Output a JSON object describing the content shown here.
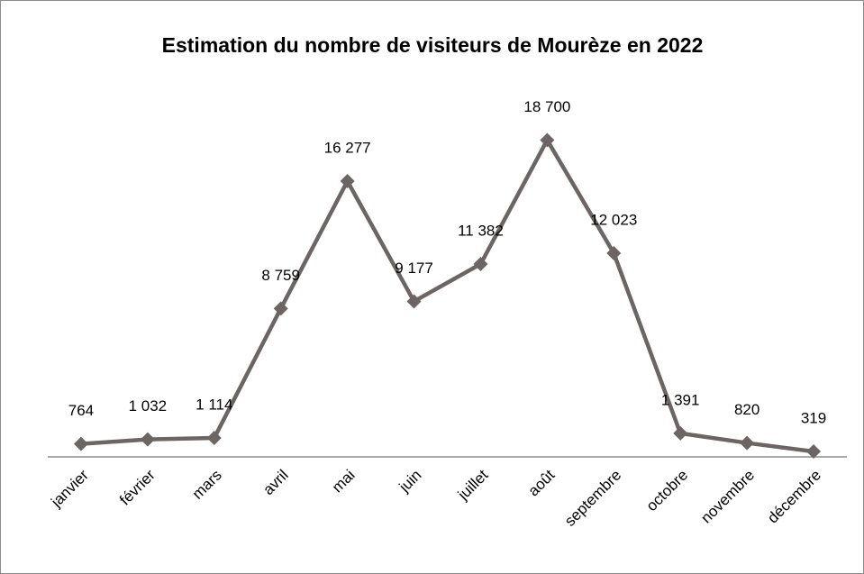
{
  "chart_data": {
    "type": "line",
    "title": "Estimation du nombre de visiteurs de Mourèze en 2022",
    "categories": [
      "janvier",
      "février",
      "mars",
      "avril",
      "mai",
      "juin",
      "juillet",
      "août",
      "septembre",
      "octobre",
      "novembre",
      "décembre"
    ],
    "values": [
      764,
      1032,
      1114,
      8759,
      16277,
      9177,
      11382,
      18700,
      12023,
      1391,
      820,
      319
    ],
    "value_labels": [
      "764",
      "1 032",
      "1 114",
      "8 759",
      "16 277",
      "9 177",
      "11 382",
      "18 700",
      "12 023",
      "1 391",
      "820",
      "319"
    ],
    "color": "#6b6663",
    "ylim": [
      0,
      20000
    ]
  }
}
